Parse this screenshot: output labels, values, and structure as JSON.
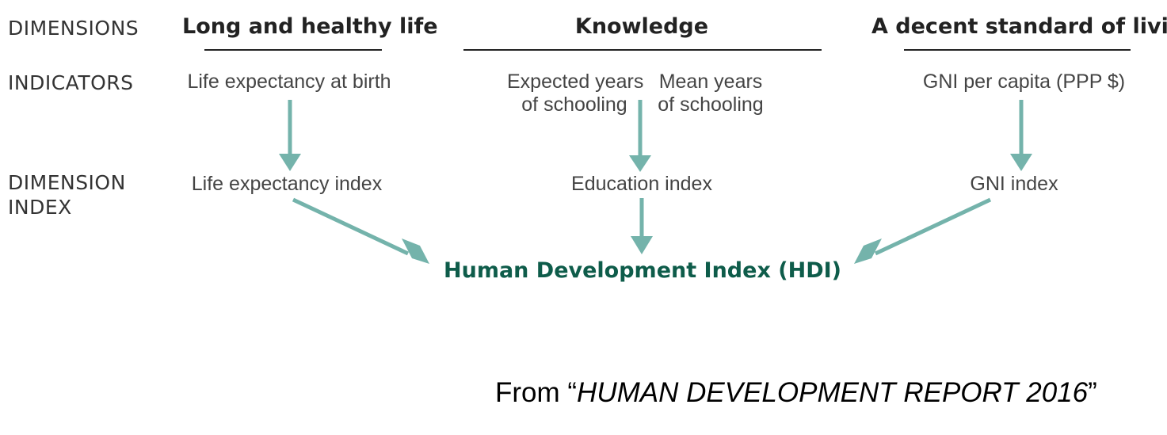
{
  "colors": {
    "arrow": "#74b3ab",
    "hdi_text": "#0e5c4a",
    "text": "#333333"
  },
  "row_labels": {
    "dimensions": "DIMENSIONS",
    "indicators": "INDICATORS",
    "dimension_index_line1": "DIMENSION",
    "dimension_index_line2": "INDEX"
  },
  "dimensions": {
    "health": "Long and healthy life",
    "knowledge": "Knowledge",
    "living": "A decent standard of living"
  },
  "indicators": {
    "life_expectancy": "Life expectancy at birth",
    "expected_years_line1": "Expected years",
    "expected_years_line2": "of schooling",
    "mean_years_line1": "Mean years",
    "mean_years_line2": "of schooling",
    "gni_per_capita": "GNI per capita (PPP $)"
  },
  "dimension_indices": {
    "life_expectancy_index": "Life expectancy index",
    "education_index": "Education index",
    "gni_index": "GNI index"
  },
  "hdi": "Human Development Index (HDI)",
  "source": {
    "prefix": "From “",
    "title": "HUMAN DEVELOPMENT REPORT 2016",
    "suffix": "”"
  }
}
